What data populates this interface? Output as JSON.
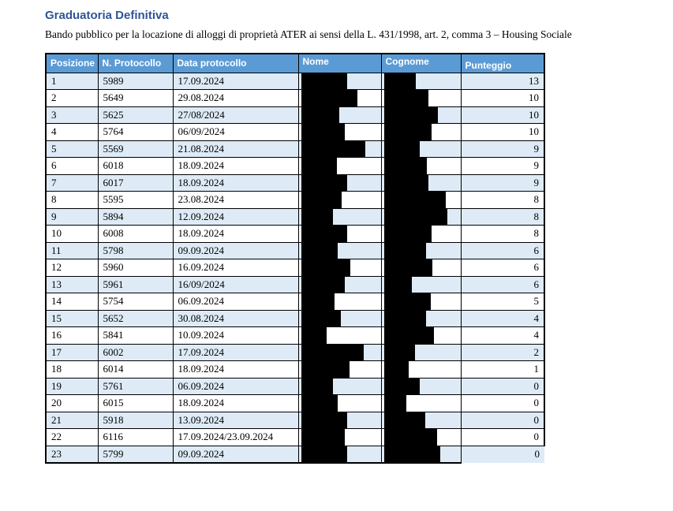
{
  "page": {
    "title": "Graduatoria Definitiva",
    "subtitle": "Bando pubblico per la locazione di alloggi di proprietà ATER ai sensi della L. 431/1998, art. 2, comma 3 – Housing Sociale"
  },
  "colors": {
    "title_text": "#2F5496",
    "header_bg": "#5B9BD5",
    "header_text": "#FFFFFF",
    "row_alt_bg": "#DEEBF7",
    "border": "#000000",
    "redaction": "#000000"
  },
  "table": {
    "headers": [
      "Posizione",
      "N. Protocollo",
      "Data protocollo",
      "Nome",
      "Cognome",
      "Punteggio"
    ],
    "redacted_columns": [
      "Nome",
      "Cognome"
    ],
    "rows": [
      {
        "posizione": "1",
        "protocollo": "5989",
        "data_protocollo": "17.09.2024",
        "nome_redacted_width": 58,
        "cognome_redacted_width": 40,
        "punteggio": "13"
      },
      {
        "posizione": "2",
        "protocollo": "5649",
        "data_protocollo": "29.08.2024",
        "nome_redacted_width": 71,
        "cognome_redacted_width": 56,
        "punteggio": "10"
      },
      {
        "posizione": "3",
        "protocollo": "5625",
        "data_protocollo": "27/08/2024",
        "nome_redacted_width": 48,
        "cognome_redacted_width": 68,
        "punteggio": "10"
      },
      {
        "posizione": "4",
        "protocollo": "5764",
        "data_protocollo": "06/09/2024",
        "nome_redacted_width": 55,
        "cognome_redacted_width": 60,
        "punteggio": "10"
      },
      {
        "posizione": "5",
        "protocollo": "5569",
        "data_protocollo": "21.08.2024",
        "nome_redacted_width": 81,
        "cognome_redacted_width": 45,
        "punteggio": "9"
      },
      {
        "posizione": "6",
        "protocollo": "6018",
        "data_protocollo": "18.09.2024",
        "nome_redacted_width": 45,
        "cognome_redacted_width": 54,
        "punteggio": "9"
      },
      {
        "posizione": "7",
        "protocollo": "6017",
        "data_protocollo": "18.09.2024",
        "nome_redacted_width": 58,
        "cognome_redacted_width": 56,
        "punteggio": "9"
      },
      {
        "posizione": "8",
        "protocollo": "5595",
        "data_protocollo": "23.08.2024",
        "nome_redacted_width": 51,
        "cognome_redacted_width": 78,
        "punteggio": "8"
      },
      {
        "posizione": "9",
        "protocollo": "5894",
        "data_protocollo": "12.09.2024",
        "nome_redacted_width": 40,
        "cognome_redacted_width": 80,
        "punteggio": "8"
      },
      {
        "posizione": "10",
        "protocollo": "6008",
        "data_protocollo": "18.09.2024",
        "nome_redacted_width": 58,
        "cognome_redacted_width": 60,
        "punteggio": "8"
      },
      {
        "posizione": "11",
        "protocollo": "5798",
        "data_protocollo": "09.09.2024",
        "nome_redacted_width": 46,
        "cognome_redacted_width": 53,
        "punteggio": "6"
      },
      {
        "posizione": "12",
        "protocollo": "5960",
        "data_protocollo": "16.09.2024",
        "nome_redacted_width": 62,
        "cognome_redacted_width": 61,
        "punteggio": "6"
      },
      {
        "posizione": "13",
        "protocollo": "5961",
        "data_protocollo": "16/09/2024",
        "nome_redacted_width": 55,
        "cognome_redacted_width": 35,
        "punteggio": "6"
      },
      {
        "posizione": "14",
        "protocollo": "5754",
        "data_protocollo": "06.09.2024",
        "nome_redacted_width": 42,
        "cognome_redacted_width": 59,
        "punteggio": "5"
      },
      {
        "posizione": "15",
        "protocollo": "5652",
        "data_protocollo": "30.08.2024",
        "nome_redacted_width": 50,
        "cognome_redacted_width": 53,
        "punteggio": "4"
      },
      {
        "posizione": "16",
        "protocollo": "5841",
        "data_protocollo": "10.09.2024",
        "nome_redacted_width": 32,
        "cognome_redacted_width": 63,
        "punteggio": "4"
      },
      {
        "posizione": "17",
        "protocollo": "6002",
        "data_protocollo": "17.09.2024",
        "nome_redacted_width": 79,
        "cognome_redacted_width": 39,
        "punteggio": "2"
      },
      {
        "posizione": "18",
        "protocollo": "6014",
        "data_protocollo": "18.09.2024",
        "nome_redacted_width": 61,
        "cognome_redacted_width": 31,
        "punteggio": "1"
      },
      {
        "posizione": "19",
        "protocollo": "5761",
        "data_protocollo": "06.09.2024",
        "nome_redacted_width": 40,
        "cognome_redacted_width": 45,
        "punteggio": "0"
      },
      {
        "posizione": "20",
        "protocollo": "6015",
        "data_protocollo": "18.09.2024",
        "nome_redacted_width": 46,
        "cognome_redacted_width": 28,
        "punteggio": "0"
      },
      {
        "posizione": "21",
        "protocollo": "5918",
        "data_protocollo": "13.09.2024",
        "nome_redacted_width": 58,
        "cognome_redacted_width": 52,
        "punteggio": "0"
      },
      {
        "posizione": "22",
        "protocollo": "6116",
        "data_protocollo": "17.09.2024/23.09.2024",
        "nome_redacted_width": 55,
        "cognome_redacted_width": 67,
        "punteggio": "0"
      },
      {
        "posizione": "23",
        "protocollo": "5799",
        "data_protocollo": "09.09.2024",
        "nome_redacted_width": 58,
        "cognome_redacted_width": 71,
        "punteggio": "0"
      }
    ]
  }
}
